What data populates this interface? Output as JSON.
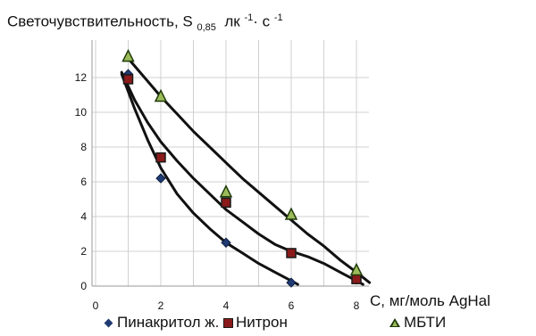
{
  "chart_data": {
    "type": "scatter",
    "title_parts": {
      "main": "Светочувствительность, S",
      "sub": "0,85",
      "unit_a": "лк",
      "sup_a": "-1",
      "sep": "·",
      "unit_b": "с",
      "sup_b": "-1"
    },
    "xlabel": "С, мг/моль AgHal",
    "xlim": [
      0,
      9
    ],
    "ylim": [
      0,
      14
    ],
    "x_ticks": [
      "0",
      "2",
      "4",
      "6",
      "8"
    ],
    "y_ticks": [
      "0",
      "2",
      "4",
      "6",
      "8",
      "10",
      "12"
    ],
    "grid": true,
    "legend_position": "bottom",
    "series": [
      {
        "name": "Пинакритол ж.",
        "marker": "diamond",
        "color": "#1f3b73",
        "x": [
          1,
          2,
          4,
          6
        ],
        "y": [
          12.2,
          6.2,
          2.5,
          0.2
        ],
        "curve_x": [
          0.8,
          1.2,
          1.6,
          2.0,
          2.5,
          3.0,
          3.5,
          4.0,
          4.5,
          5.0,
          5.5,
          6.0,
          6.2
        ],
        "curve_y": [
          12.2,
          10.2,
          8.4,
          6.8,
          5.3,
          4.2,
          3.3,
          2.5,
          1.9,
          1.3,
          0.8,
          0.3,
          0.1
        ]
      },
      {
        "name": "Нитрон",
        "marker": "square",
        "color": "#8b1a1a",
        "x": [
          1,
          2,
          4,
          6,
          8
        ],
        "y": [
          11.9,
          7.4,
          4.8,
          1.9,
          0.4
        ],
        "curve_x": [
          0.8,
          1.2,
          1.6,
          2.0,
          2.5,
          3.0,
          3.5,
          4.0,
          4.5,
          5.0,
          5.5,
          6.0,
          6.5,
          7.0,
          7.5,
          8.0,
          8.2
        ],
        "curve_y": [
          12.3,
          10.7,
          9.4,
          8.3,
          7.2,
          6.2,
          5.3,
          4.4,
          3.7,
          3.0,
          2.4,
          2.0,
          1.7,
          1.3,
          0.8,
          0.3,
          0.1
        ]
      },
      {
        "name": "МБТИ",
        "marker": "triangle",
        "color": "#9bbb59",
        "x": [
          1,
          2,
          4,
          6,
          8
        ],
        "y": [
          13.2,
          10.9,
          5.4,
          4.1,
          0.9
        ],
        "curve_x": [
          1.0,
          1.5,
          2.0,
          2.5,
          3.0,
          3.5,
          4.0,
          4.5,
          5.0,
          5.5,
          6.0,
          6.5,
          7.0,
          7.5,
          8.0,
          8.4
        ],
        "curve_y": [
          13.1,
          12.0,
          10.9,
          9.9,
          8.9,
          8.0,
          7.1,
          6.2,
          5.4,
          4.6,
          3.8,
          3.0,
          2.3,
          1.5,
          0.8,
          0.2
        ]
      }
    ]
  },
  "legend": {
    "items": [
      "Пинакритол ж.",
      "Нитрон",
      "МБТИ"
    ]
  }
}
